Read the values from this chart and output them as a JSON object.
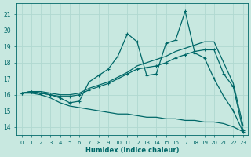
{
  "xlabel": "Humidex (Indice chaleur)",
  "ylabel": "",
  "background_color": "#c8e8e0",
  "grid_color": "#b0d8d0",
  "line_color": "#006868",
  "xlim": [
    -0.5,
    23.5
  ],
  "ylim": [
    13.5,
    21.7
  ],
  "xticks": [
    0,
    1,
    2,
    3,
    4,
    5,
    6,
    7,
    8,
    9,
    10,
    11,
    12,
    13,
    14,
    15,
    16,
    17,
    18,
    19,
    20,
    21,
    22,
    23
  ],
  "yticks": [
    14,
    15,
    16,
    17,
    18,
    19,
    20,
    21
  ],
  "lines": [
    {
      "x": [
        0,
        1,
        2,
        3,
        4,
        5,
        6,
        7,
        8,
        9,
        10,
        11,
        12,
        13,
        14,
        15,
        16,
        17,
        18,
        19,
        20,
        21,
        22,
        23
      ],
      "y": [
        16.1,
        16.2,
        16.1,
        16.0,
        15.8,
        15.5,
        15.6,
        16.8,
        17.2,
        17.6,
        18.4,
        19.8,
        19.3,
        17.2,
        17.3,
        19.2,
        19.4,
        21.2,
        18.6,
        18.3,
        17.0,
        15.9,
        15.0,
        13.7
      ],
      "marker": true,
      "lw": 0.9
    },
    {
      "x": [
        0,
        1,
        2,
        3,
        4,
        5,
        6,
        7,
        8,
        9,
        10,
        11,
        12,
        13,
        14,
        15,
        16,
        17,
        18,
        19,
        20,
        21,
        22,
        23
      ],
      "y": [
        16.1,
        16.2,
        16.1,
        16.0,
        15.9,
        15.9,
        16.0,
        16.3,
        16.5,
        16.7,
        17.0,
        17.3,
        17.6,
        17.7,
        17.8,
        18.0,
        18.3,
        18.5,
        18.7,
        18.8,
        18.8,
        17.3,
        16.5,
        13.8
      ],
      "marker": true,
      "lw": 0.9
    },
    {
      "x": [
        0,
        1,
        2,
        3,
        4,
        5,
        6,
        7,
        8,
        9,
        10,
        11,
        12,
        13,
        14,
        15,
        16,
        17,
        18,
        19,
        20,
        21,
        22,
        23
      ],
      "y": [
        16.1,
        16.2,
        16.2,
        16.1,
        16.0,
        16.0,
        16.1,
        16.4,
        16.6,
        16.8,
        17.1,
        17.4,
        17.8,
        18.0,
        18.2,
        18.4,
        18.7,
        18.9,
        19.1,
        19.3,
        19.3,
        18.0,
        16.7,
        14.1
      ],
      "marker": false,
      "lw": 0.9
    },
    {
      "x": [
        0,
        1,
        2,
        3,
        4,
        5,
        6,
        7,
        8,
        9,
        10,
        11,
        12,
        13,
        14,
        15,
        16,
        17,
        18,
        19,
        20,
        21,
        22,
        23
      ],
      "y": [
        16.1,
        16.1,
        16.0,
        15.8,
        15.5,
        15.3,
        15.2,
        15.1,
        15.0,
        14.9,
        14.8,
        14.8,
        14.7,
        14.6,
        14.6,
        14.5,
        14.5,
        14.4,
        14.4,
        14.3,
        14.3,
        14.2,
        14.0,
        13.7
      ],
      "marker": false,
      "lw": 0.9
    }
  ]
}
